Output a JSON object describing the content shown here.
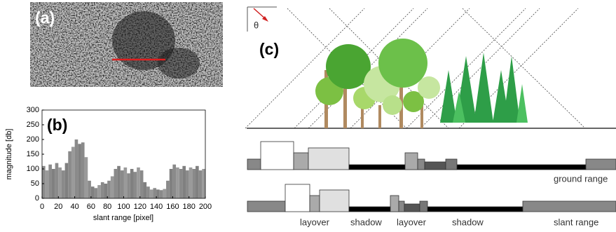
{
  "panel_a": {
    "label": "(a)"
  },
  "chart_data": {
    "type": "bar",
    "annotation": "(b)",
    "x_label": "slant range [pixel]",
    "y_label": "magnitude [db]",
    "x": [
      2,
      6,
      10,
      14,
      18,
      22,
      26,
      30,
      34,
      38,
      42,
      46,
      50,
      54,
      58,
      62,
      66,
      70,
      74,
      78,
      82,
      86,
      90,
      94,
      98,
      102,
      106,
      110,
      114,
      118,
      122,
      126,
      130,
      134,
      138,
      142,
      146,
      150,
      154,
      158,
      162,
      166,
      170,
      174,
      178,
      182,
      186,
      190,
      194,
      198
    ],
    "values": [
      110,
      95,
      115,
      100,
      120,
      105,
      95,
      120,
      160,
      175,
      200,
      185,
      190,
      140,
      60,
      40,
      35,
      45,
      55,
      50,
      60,
      75,
      100,
      110,
      95,
      105,
      85,
      100,
      90,
      105,
      95,
      55,
      40,
      30,
      35,
      30,
      28,
      32,
      60,
      100,
      115,
      105,
      100,
      110,
      95,
      105,
      100,
      110,
      95,
      100
    ],
    "color": "#8a8a8a",
    "xlim": [
      0,
      200
    ],
    "ylim": [
      0,
      300
    ],
    "xticks": [
      0,
      20,
      40,
      60,
      80,
      100,
      120,
      140,
      160,
      180,
      200
    ],
    "yticks": [
      0,
      50,
      100,
      150,
      200,
      250,
      300
    ]
  },
  "panel_c": {
    "label": "(c)",
    "angle": "θ",
    "ground_axis": "ground range",
    "slant_axis": "slant range",
    "regions": [
      "layover",
      "shadow",
      "layover",
      "shadow"
    ]
  }
}
